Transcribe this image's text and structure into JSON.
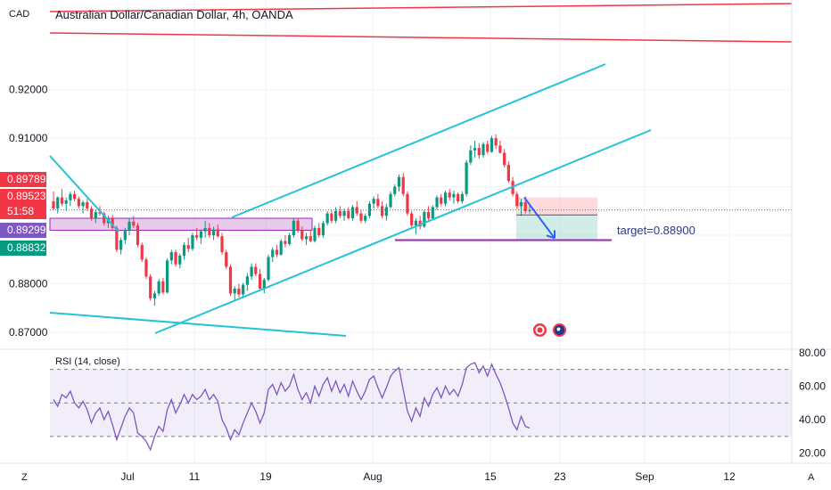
{
  "header": {
    "currency": "CAD",
    "title": "Australian Dollar/Canadian Dollar, 4h, OANDA"
  },
  "chart_data": {
    "type": "candlestick",
    "y_ticks": [
      "0.92000",
      "0.91000",
      "0.88000",
      "0.87000"
    ],
    "ylim": [
      0.8665,
      0.9385
    ],
    "x_ticks": [
      "Jul",
      "11",
      "19",
      "Aug",
      "15",
      "23",
      "Sep",
      "12"
    ],
    "price_badges": [
      {
        "text": "0.89789",
        "color": "#f23645",
        "value": 0.89789
      },
      {
        "text": "0.89523",
        "color": "#f23645",
        "value": 0.89523
      },
      {
        "text": "51:58",
        "color": "#f23645",
        "value": 0.8942
      },
      {
        "text": "0.89299",
        "color": "#7e57c2",
        "value": 0.89299
      },
      {
        "text": "0.88832",
        "color": "#089981",
        "value": 0.88832
      }
    ],
    "last_price": 0.89523,
    "support_level": 0.89299,
    "target_level": 0.889,
    "target_label": "target=0.88900",
    "rsi": {
      "label": "RSI (14, close)",
      "ticks": [
        "80.00",
        "60.00",
        "40.00",
        "20.00"
      ],
      "levels": [
        70,
        50,
        30
      ],
      "ylim": [
        14,
        82
      ]
    },
    "colors": {
      "up": "#089981",
      "down": "#f23645",
      "channel": "#22c3d8",
      "resistance": "#f23645",
      "support": "#9c27b0",
      "rsi": "#7e57c2",
      "arrow": "#2962ff"
    },
    "candles": [
      [
        0.897,
        0.899,
        0.8952,
        0.8955
      ],
      [
        0.8955,
        0.898,
        0.8945,
        0.8978
      ],
      [
        0.8978,
        0.8995,
        0.896,
        0.8965
      ],
      [
        0.8965,
        0.8978,
        0.895,
        0.8972
      ],
      [
        0.8972,
        0.899,
        0.896,
        0.8985
      ],
      [
        0.8985,
        0.8992,
        0.897,
        0.8975
      ],
      [
        0.8975,
        0.898,
        0.8955,
        0.896
      ],
      [
        0.896,
        0.8972,
        0.8945,
        0.8968
      ],
      [
        0.8968,
        0.8975,
        0.895,
        0.8955
      ],
      [
        0.8955,
        0.896,
        0.893,
        0.8935
      ],
      [
        0.8935,
        0.8952,
        0.8925,
        0.8948
      ],
      [
        0.8948,
        0.896,
        0.894,
        0.8945
      ],
      [
        0.8945,
        0.8948,
        0.892,
        0.8925
      ],
      [
        0.8925,
        0.894,
        0.8915,
        0.8935
      ],
      [
        0.8935,
        0.8942,
        0.891,
        0.8915
      ],
      [
        0.8915,
        0.892,
        0.8865,
        0.887
      ],
      [
        0.887,
        0.8895,
        0.886,
        0.889
      ],
      [
        0.889,
        0.8915,
        0.8882,
        0.891
      ],
      [
        0.891,
        0.8935,
        0.89,
        0.8928
      ],
      [
        0.8928,
        0.894,
        0.8915,
        0.892
      ],
      [
        0.892,
        0.8925,
        0.8875,
        0.888
      ],
      [
        0.888,
        0.8885,
        0.8845,
        0.885
      ],
      [
        0.885,
        0.8855,
        0.881,
        0.8815
      ],
      [
        0.8815,
        0.882,
        0.8765,
        0.877
      ],
      [
        0.877,
        0.8785,
        0.8755,
        0.878
      ],
      [
        0.878,
        0.881,
        0.8775,
        0.8805
      ],
      [
        0.8805,
        0.8812,
        0.8778,
        0.8782
      ],
      [
        0.8782,
        0.8852,
        0.878,
        0.8848
      ],
      [
        0.8848,
        0.887,
        0.884,
        0.8865
      ],
      [
        0.8865,
        0.887,
        0.8835,
        0.884
      ],
      [
        0.884,
        0.8862,
        0.8832,
        0.8858
      ],
      [
        0.8858,
        0.8885,
        0.885,
        0.888
      ],
      [
        0.888,
        0.8895,
        0.8865,
        0.8872
      ],
      [
        0.8872,
        0.8905,
        0.8868,
        0.89
      ],
      [
        0.89,
        0.8915,
        0.889,
        0.8895
      ],
      [
        0.8895,
        0.8912,
        0.8882,
        0.8908
      ],
      [
        0.8908,
        0.893,
        0.8895,
        0.8915
      ],
      [
        0.8915,
        0.8925,
        0.8895,
        0.89
      ],
      [
        0.89,
        0.8918,
        0.889,
        0.8912
      ],
      [
        0.8912,
        0.8922,
        0.8895,
        0.8898
      ],
      [
        0.8898,
        0.8905,
        0.886,
        0.8865
      ],
      [
        0.8865,
        0.887,
        0.883,
        0.8835
      ],
      [
        0.8835,
        0.884,
        0.8775,
        0.878
      ],
      [
        0.878,
        0.8795,
        0.8765,
        0.879
      ],
      [
        0.879,
        0.88,
        0.8772,
        0.8778
      ],
      [
        0.8778,
        0.8802,
        0.877,
        0.8798
      ],
      [
        0.8798,
        0.8822,
        0.8785,
        0.8815
      ],
      [
        0.8815,
        0.8842,
        0.8808,
        0.8835
      ],
      [
        0.8835,
        0.8842,
        0.8815,
        0.882
      ],
      [
        0.882,
        0.883,
        0.8785,
        0.879
      ],
      [
        0.879,
        0.8812,
        0.878,
        0.8808
      ],
      [
        0.8808,
        0.886,
        0.8805,
        0.8855
      ],
      [
        0.8855,
        0.8875,
        0.8845,
        0.887
      ],
      [
        0.887,
        0.888,
        0.8855,
        0.886
      ],
      [
        0.886,
        0.8892,
        0.8858,
        0.8888
      ],
      [
        0.8888,
        0.89,
        0.8875,
        0.8882
      ],
      [
        0.8882,
        0.8905,
        0.8878,
        0.89
      ],
      [
        0.89,
        0.8935,
        0.8895,
        0.893
      ],
      [
        0.893,
        0.8935,
        0.8905,
        0.891
      ],
      [
        0.891,
        0.8918,
        0.8888,
        0.8892
      ],
      [
        0.8892,
        0.8905,
        0.888,
        0.8898
      ],
      [
        0.8898,
        0.8912,
        0.8885,
        0.8888
      ],
      [
        0.8888,
        0.892,
        0.8885,
        0.8915
      ],
      [
        0.8915,
        0.8925,
        0.8895,
        0.89
      ],
      [
        0.89,
        0.893,
        0.8895,
        0.8925
      ],
      [
        0.8925,
        0.895,
        0.892,
        0.8945
      ],
      [
        0.8945,
        0.8952,
        0.8925,
        0.893
      ],
      [
        0.893,
        0.8958,
        0.8925,
        0.895
      ],
      [
        0.895,
        0.896,
        0.8935,
        0.894
      ],
      [
        0.894,
        0.8955,
        0.893,
        0.895
      ],
      [
        0.895,
        0.8958,
        0.8932,
        0.8935
      ],
      [
        0.8935,
        0.8962,
        0.893,
        0.8958
      ],
      [
        0.8958,
        0.897,
        0.894,
        0.8945
      ],
      [
        0.8945,
        0.8952,
        0.8925,
        0.893
      ],
      [
        0.893,
        0.8945,
        0.8925,
        0.894
      ],
      [
        0.894,
        0.897,
        0.8935,
        0.8965
      ],
      [
        0.8965,
        0.898,
        0.8955,
        0.8975
      ],
      [
        0.8975,
        0.8985,
        0.8955,
        0.896
      ],
      [
        0.896,
        0.897,
        0.8935,
        0.894
      ],
      [
        0.894,
        0.8965,
        0.893,
        0.8958
      ],
      [
        0.8958,
        0.899,
        0.8955,
        0.8985
      ],
      [
        0.8985,
        0.9005,
        0.898,
        0.9
      ],
      [
        0.9,
        0.9025,
        0.899,
        0.902
      ],
      [
        0.902,
        0.9028,
        0.898,
        0.8985
      ],
      [
        0.8985,
        0.899,
        0.894,
        0.8945
      ],
      [
        0.8945,
        0.895,
        0.8915,
        0.892
      ],
      [
        0.892,
        0.8935,
        0.8902,
        0.893
      ],
      [
        0.893,
        0.894,
        0.8912,
        0.8918
      ],
      [
        0.8918,
        0.8952,
        0.8915,
        0.8948
      ],
      [
        0.8948,
        0.896,
        0.893,
        0.8935
      ],
      [
        0.8935,
        0.8962,
        0.8932,
        0.8958
      ],
      [
        0.8958,
        0.8982,
        0.8952,
        0.8978
      ],
      [
        0.8978,
        0.8985,
        0.896,
        0.8965
      ],
      [
        0.8965,
        0.8992,
        0.896,
        0.8988
      ],
      [
        0.8988,
        0.8995,
        0.8972,
        0.8978
      ],
      [
        0.8978,
        0.8992,
        0.8965,
        0.8985
      ],
      [
        0.8985,
        0.8988,
        0.8965,
        0.897
      ],
      [
        0.897,
        0.899,
        0.8965,
        0.8985
      ],
      [
        0.8985,
        0.9055,
        0.898,
        0.905
      ],
      [
        0.905,
        0.9085,
        0.9045,
        0.9075
      ],
      [
        0.9075,
        0.9095,
        0.906,
        0.908
      ],
      [
        0.908,
        0.909,
        0.9058,
        0.9065
      ],
      [
        0.9065,
        0.9092,
        0.906,
        0.9088
      ],
      [
        0.9088,
        0.9095,
        0.9068,
        0.9072
      ],
      [
        0.9072,
        0.9105,
        0.907,
        0.91
      ],
      [
        0.91,
        0.9108,
        0.9078,
        0.9085
      ],
      [
        0.9085,
        0.9095,
        0.9068,
        0.907
      ],
      [
        0.907,
        0.9078,
        0.904,
        0.9045
      ],
      [
        0.9045,
        0.9052,
        0.9008,
        0.9012
      ],
      [
        0.9012,
        0.902,
        0.898,
        0.8985
      ],
      [
        0.8985,
        0.899,
        0.8955,
        0.896
      ],
      [
        0.896,
        0.8975,
        0.894,
        0.8968
      ],
      [
        0.8968,
        0.898,
        0.8945,
        0.895
      ],
      [
        0.895,
        0.8962,
        0.8945,
        0.8952
      ]
    ],
    "rsi_values": [
      52,
      48,
      55,
      53,
      57,
      50,
      47,
      51,
      46,
      38,
      44,
      47,
      40,
      45,
      37,
      28,
      35,
      42,
      47,
      44,
      32,
      30,
      27,
      22,
      30,
      36,
      33,
      46,
      52,
      44,
      49,
      55,
      50,
      55,
      52,
      54,
      58,
      52,
      55,
      51,
      40,
      35,
      28,
      34,
      31,
      38,
      44,
      50,
      45,
      38,
      44,
      58,
      61,
      55,
      62,
      57,
      60,
      67,
      58,
      52,
      56,
      50,
      60,
      54,
      61,
      65,
      57,
      63,
      56,
      61,
      54,
      63,
      57,
      52,
      57,
      64,
      66,
      59,
      53,
      59,
      66,
      69,
      71,
      58,
      45,
      39,
      47,
      42,
      53,
      48,
      55,
      59,
      53,
      60,
      55,
      58,
      54,
      61,
      71,
      73,
      74,
      68,
      72,
      66,
      73,
      67,
      62,
      55,
      47,
      38,
      34,
      42,
      36,
      35
    ]
  }
}
